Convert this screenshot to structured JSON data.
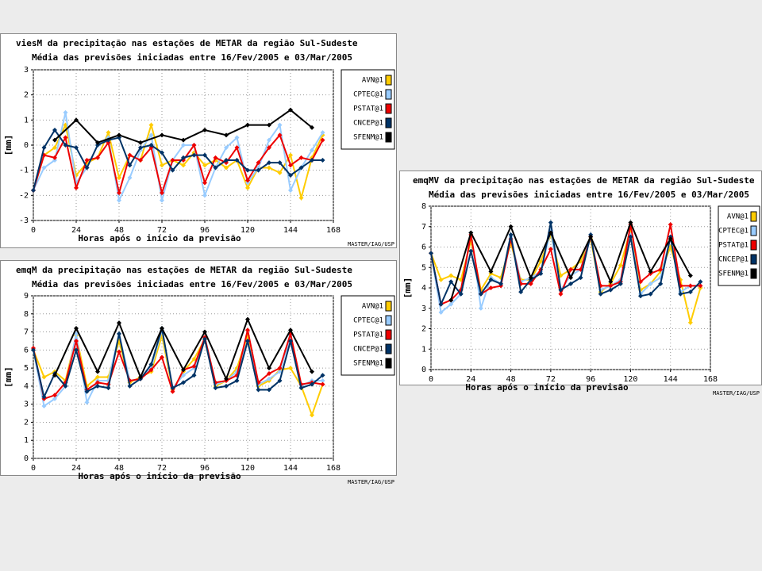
{
  "chart_data": [
    {
      "type": "line",
      "title": "viesM da precipitação nas estações de METAR da região Sul-Sudeste",
      "subtitle": "Média das previsões iniciadas entre 16/Fev/2005 e 03/Mar/2005",
      "x_label": "Horas após o início da previsão",
      "y_label": "[mm]",
      "credit": "MASTER/IAG/USP",
      "x": [
        0,
        6,
        12,
        18,
        24,
        30,
        36,
        42,
        48,
        54,
        60,
        66,
        72,
        78,
        84,
        90,
        96,
        102,
        108,
        114,
        120,
        126,
        132,
        138,
        144,
        150,
        156,
        162
      ],
      "xlim": [
        0,
        168
      ],
      "xticks": [
        0,
        24,
        48,
        72,
        96,
        120,
        144,
        168
      ],
      "ylim": [
        -3,
        3
      ],
      "yticks": [
        -3,
        -2,
        -1,
        0,
        1,
        2,
        3
      ],
      "grid": true,
      "series": [
        {
          "name": "AVN@1",
          "color": "#ffcc00",
          "values": [
            -1.8,
            -0.4,
            -0.1,
            0.8,
            -1.2,
            -0.7,
            -0.5,
            0.5,
            -1.3,
            -0.4,
            -0.6,
            0.8,
            -0.8,
            -0.6,
            -0.8,
            -0.3,
            -0.8,
            -0.6,
            -0.9,
            -0.6,
            -1.7,
            -0.9,
            -0.9,
            -1.1,
            -0.4,
            -2.1,
            -0.5,
            0.4
          ]
        },
        {
          "name": "CPTEC@1",
          "color": "#99ccff",
          "values": [
            -1.8,
            -0.9,
            -0.6,
            1.3,
            -1.5,
            -0.9,
            0.0,
            0.3,
            -2.2,
            -1.3,
            -0.2,
            0.4,
            -2.2,
            -0.6,
            0.0,
            0.0,
            -2.0,
            -0.9,
            -0.1,
            0.3,
            -1.5,
            -0.9,
            0.2,
            0.8,
            -1.8,
            -0.9,
            -0.2,
            0.5
          ]
        },
        {
          "name": "PSTAT@1",
          "color": "#ee0000",
          "values": [
            -1.8,
            -0.4,
            -0.5,
            0.3,
            -1.7,
            -0.6,
            -0.5,
            0.1,
            -1.9,
            -0.4,
            -0.6,
            -0.1,
            -1.9,
            -0.6,
            -0.6,
            0.0,
            -1.5,
            -0.5,
            -0.7,
            -0.1,
            -1.4,
            -0.7,
            -0.1,
            0.4,
            -0.8,
            -0.5,
            -0.6,
            0.2
          ]
        },
        {
          "name": "CNCEP@1",
          "color": "#003366",
          "values": [
            -1.8,
            -0.1,
            0.6,
            0.0,
            -0.1,
            -0.9,
            0.0,
            0.2,
            0.3,
            -0.8,
            -0.1,
            0.0,
            -0.3,
            -1.0,
            -0.5,
            -0.4,
            -0.4,
            -0.9,
            -0.6,
            -0.6,
            -1.0,
            -1.0,
            -0.7,
            -0.7,
            -1.2,
            -0.9,
            -0.6,
            -0.6
          ]
        },
        {
          "name": "SFENM@1",
          "color": "#000000",
          "x": [
            12,
            24,
            36,
            48,
            60,
            72,
            84,
            96,
            108,
            120,
            132,
            144,
            156
          ],
          "values": [
            0.2,
            1.0,
            0.1,
            0.4,
            0.1,
            0.4,
            0.2,
            0.6,
            0.4,
            0.8,
            0.8,
            1.4,
            0.7
          ]
        }
      ]
    },
    {
      "type": "line",
      "title": "emqM da precipitação nas estações de METAR da região Sul-Sudeste",
      "subtitle": "Média das previsões iniciadas entre 16/Fev/2005 e 03/Mar/2005",
      "x_label": "Horas após o início da previsão",
      "y_label": "[mm]",
      "credit": "MASTER/IAG/USP",
      "x": [
        0,
        6,
        12,
        18,
        24,
        30,
        36,
        42,
        48,
        54,
        60,
        66,
        72,
        78,
        84,
        90,
        96,
        102,
        108,
        114,
        120,
        126,
        132,
        138,
        144,
        150,
        156,
        162
      ],
      "xlim": [
        0,
        168
      ],
      "xticks": [
        0,
        24,
        48,
        72,
        96,
        120,
        144,
        168
      ],
      "ylim": [
        0,
        9
      ],
      "yticks": [
        0,
        1,
        2,
        3,
        4,
        5,
        6,
        7,
        8,
        9
      ],
      "grid": true,
      "series": [
        {
          "name": "AVN@1",
          "color": "#ffcc00",
          "values": [
            6.0,
            4.5,
            4.8,
            4.3,
            6.8,
            4.0,
            4.5,
            4.5,
            6.5,
            4.2,
            4.5,
            4.8,
            6.8,
            3.8,
            4.8,
            5.5,
            6.6,
            4.0,
            4.3,
            5.0,
            6.8,
            4.0,
            4.3,
            4.9,
            5.0,
            4.0,
            2.4,
            4.1
          ]
        },
        {
          "name": "CPTEC@1",
          "color": "#99ccff",
          "values": [
            6.0,
            2.9,
            3.3,
            4.0,
            6.9,
            3.1,
            4.3,
            4.3,
            6.9,
            4.3,
            4.4,
            5.0,
            7.1,
            3.9,
            4.6,
            5.0,
            6.7,
            4.1,
            4.3,
            4.8,
            6.5,
            4.1,
            4.4,
            4.8,
            6.8,
            4.0,
            4.3,
            4.3
          ]
        },
        {
          "name": "PSTAT@1",
          "color": "#ee0000",
          "values": [
            6.1,
            3.3,
            3.5,
            4.2,
            6.5,
            3.8,
            4.2,
            4.1,
            5.9,
            4.3,
            4.4,
            4.9,
            5.6,
            3.7,
            4.9,
            5.1,
            6.7,
            4.2,
            4.3,
            4.6,
            7.1,
            4.2,
            4.7,
            5.0,
            6.9,
            4.1,
            4.2,
            4.1
          ]
        },
        {
          "name": "CNCEP@1",
          "color": "#003366",
          "values": [
            6.0,
            3.4,
            4.7,
            4.0,
            6.0,
            3.7,
            4.0,
            3.9,
            6.9,
            4.0,
            4.4,
            5.2,
            7.2,
            3.9,
            4.2,
            4.6,
            6.6,
            3.9,
            4.0,
            4.3,
            6.5,
            3.8,
            3.8,
            4.3,
            6.5,
            3.9,
            4.1,
            4.6
          ]
        },
        {
          "name": "SFENM@1",
          "color": "#000000",
          "x": [
            12,
            24,
            36,
            48,
            60,
            72,
            84,
            96,
            108,
            120,
            132,
            144,
            156
          ],
          "values": [
            4.6,
            7.2,
            4.8,
            7.5,
            4.5,
            7.2,
            4.9,
            7.0,
            4.4,
            7.7,
            5.0,
            7.1,
            4.8
          ]
        }
      ]
    },
    {
      "type": "line",
      "title": "emqMV da precipitação nas estações de METAR da região Sul-Sudeste",
      "subtitle": "Média das previsões iniciadas entre 16/Fev/2005 e 03/Mar/2005",
      "x_label": "Horas após o início da previsão",
      "y_label": "[mm]",
      "credit": "MASTER/IAG/USP",
      "x": [
        0,
        6,
        12,
        18,
        24,
        30,
        36,
        42,
        48,
        54,
        60,
        66,
        72,
        78,
        84,
        90,
        96,
        102,
        108,
        114,
        120,
        126,
        132,
        138,
        144,
        150,
        156,
        162
      ],
      "xlim": [
        0,
        168
      ],
      "xticks": [
        0,
        24,
        48,
        72,
        96,
        120,
        144,
        168
      ],
      "ylim": [
        0,
        8
      ],
      "yticks": [
        0,
        1,
        2,
        3,
        4,
        5,
        6,
        7,
        8
      ],
      "grid": true,
      "series": [
        {
          "name": "AVN@1",
          "color": "#ffcc00",
          "values": [
            5.7,
            4.4,
            4.6,
            4.4,
            6.3,
            3.9,
            4.7,
            4.5,
            6.2,
            4.4,
            4.4,
            5.3,
            6.6,
            4.6,
            4.9,
            5.3,
            6.4,
            3.8,
            4.2,
            5.1,
            6.9,
            3.9,
            4.2,
            4.8,
            6.0,
            4.4,
            2.3,
            4.0
          ]
        },
        {
          "name": "CPTEC@1",
          "color": "#99ccff",
          "values": [
            5.7,
            2.8,
            3.2,
            3.7,
            6.7,
            3.0,
            4.5,
            4.2,
            6.5,
            4.3,
            4.5,
            4.8,
            6.8,
            3.9,
            4.6,
            4.9,
            6.6,
            3.9,
            4.1,
            4.4,
            6.6,
            3.7,
            4.2,
            4.5,
            6.5,
            3.8,
            4.1,
            4.1
          ]
        },
        {
          "name": "PSTAT@1",
          "color": "#ee0000",
          "values": [
            5.7,
            3.2,
            3.4,
            3.9,
            6.6,
            3.7,
            4.0,
            4.1,
            6.4,
            4.2,
            4.2,
            4.9,
            5.9,
            3.7,
            4.9,
            4.9,
            6.5,
            4.1,
            4.1,
            4.3,
            7.1,
            4.3,
            4.7,
            4.9,
            7.1,
            4.1,
            4.1,
            4.1
          ]
        },
        {
          "name": "CNCEP@1",
          "color": "#003366",
          "values": [
            5.7,
            3.2,
            4.3,
            3.7,
            5.8,
            3.7,
            4.4,
            4.2,
            6.6,
            3.8,
            4.4,
            4.7,
            7.2,
            3.9,
            4.2,
            4.5,
            6.6,
            3.7,
            3.9,
            4.2,
            6.5,
            3.6,
            3.7,
            4.2,
            6.5,
            3.7,
            3.8,
            4.3
          ]
        },
        {
          "name": "SFENM@1",
          "color": "#000000",
          "x": [
            12,
            24,
            36,
            48,
            60,
            72,
            84,
            96,
            108,
            120,
            132,
            144,
            156
          ],
          "values": [
            3.4,
            6.7,
            4.8,
            7.0,
            4.5,
            6.7,
            4.5,
            6.5,
            4.3,
            7.2,
            4.8,
            6.4,
            4.6
          ]
        }
      ]
    }
  ]
}
